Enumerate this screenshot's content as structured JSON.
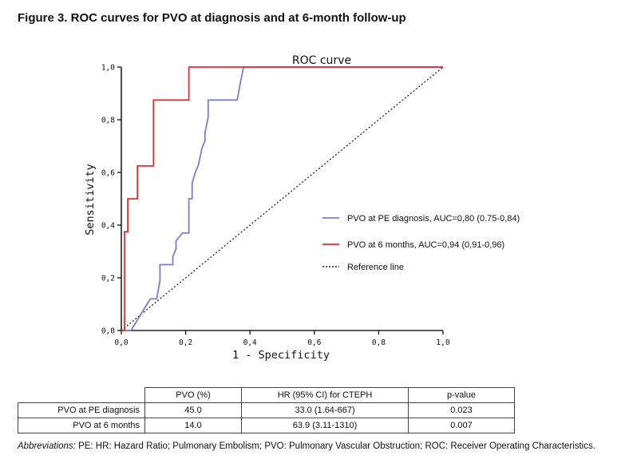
{
  "figure_title": "Figure 3. ROC curves for PVO at diagnosis and at 6-month follow-up",
  "chart_data": {
    "type": "line",
    "title": "ROC curve",
    "xlabel": "1 - Specificity",
    "ylabel": "Sensitivity",
    "xlim": [
      0,
      1
    ],
    "ylim": [
      0,
      1
    ],
    "x_ticks": [
      "0,0",
      "0,2",
      "0,4",
      "0,6",
      "0,8",
      "1,0"
    ],
    "y_ticks": [
      "0,0",
      "0,2",
      "0,4",
      "0,6",
      "0,8",
      "1,0"
    ],
    "grid": false,
    "legend_position": "center-right",
    "series": [
      {
        "name": "PVO at PE diagnosis, AUC=0,80 (0.75-0,84)",
        "color": "#7b7bd6",
        "style": "solid",
        "x": [
          0.0,
          0.03,
          0.04,
          0.06,
          0.08,
          0.09,
          0.1,
          0.11,
          0.12,
          0.12,
          0.16,
          0.16,
          0.17,
          0.17,
          0.19,
          0.2,
          0.21,
          0.21,
          0.22,
          0.22,
          0.23,
          0.24,
          0.25,
          0.26,
          0.26,
          0.27,
          0.27,
          0.36,
          0.37,
          0.38,
          1.0
        ],
        "y": [
          0.0,
          0.0,
          0.02,
          0.06,
          0.1,
          0.12,
          0.12,
          0.12,
          0.19,
          0.25,
          0.25,
          0.28,
          0.31,
          0.34,
          0.37,
          0.37,
          0.37,
          0.5,
          0.5,
          0.56,
          0.6,
          0.63,
          0.69,
          0.72,
          0.75,
          0.81,
          0.875,
          0.875,
          0.94,
          1.0,
          1.0
        ]
      },
      {
        "name": "PVO at 6 months, AUC=0,94 (0,91-0,96)",
        "color": "#e03030",
        "style": "solid",
        "x": [
          0.0,
          0.01,
          0.01,
          0.02,
          0.02,
          0.05,
          0.05,
          0.1,
          0.1,
          0.21,
          0.21,
          1.0
        ],
        "y": [
          0.0,
          0.0,
          0.375,
          0.375,
          0.5,
          0.5,
          0.625,
          0.625,
          0.875,
          0.875,
          1.0,
          1.0
        ]
      },
      {
        "name": "Reference line",
        "color": "#222222",
        "style": "dotted",
        "x": [
          0,
          1
        ],
        "y": [
          0,
          1
        ]
      }
    ]
  },
  "table": {
    "headers": [
      "",
      "PVO (%)",
      "HR (95% CI) for CTEPH",
      "p-value"
    ],
    "rows": [
      [
        "PVO at PE diagnosis",
        "45.0",
        "33.0 (1.64-667)",
        "0.023"
      ],
      [
        "PVO at 6 months",
        "14.0",
        "63.9 (3.11-1310)",
        "0.007"
      ]
    ]
  },
  "abbreviations": {
    "label": "Abbreviations:",
    "text": " PE: HR: Hazard Ratio; Pulmonary Embolism; PVO: Pulmonary Vascular Obstruction; ROC: Receiver Operating Characteristics."
  }
}
